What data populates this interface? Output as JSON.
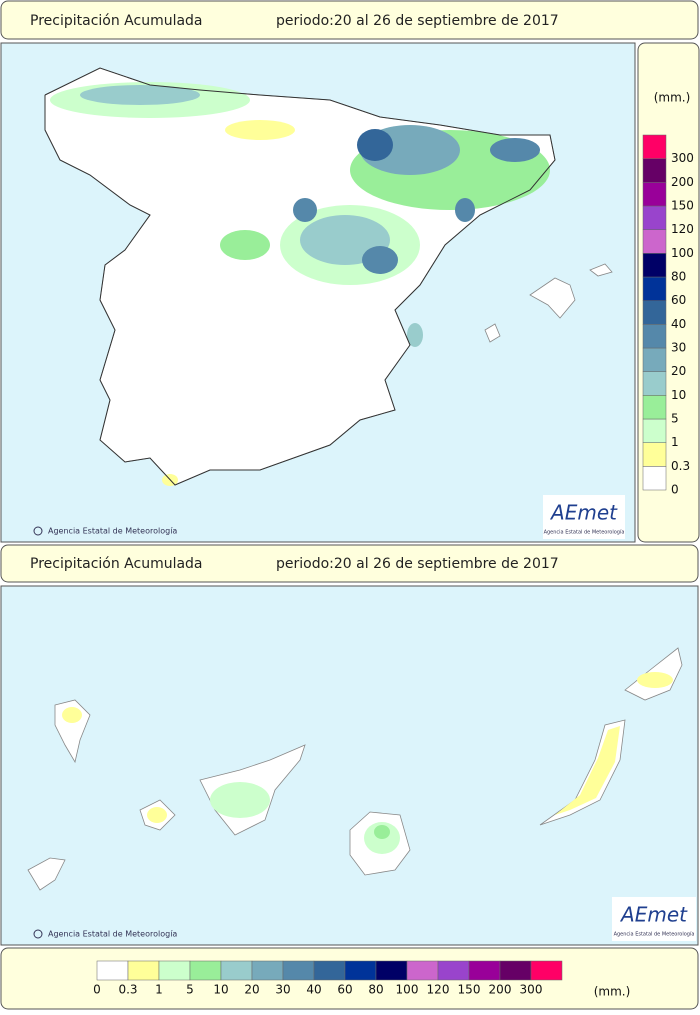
{
  "panels": [
    {
      "title": "Precipitación Acumulada",
      "period": "periodo:20 al 26 de septiembre de 2017"
    },
    {
      "title": "Precipitación Acumulada",
      "period": "periodo:20 al 26 de septiembre de 2017"
    }
  ],
  "credit": "Agencia Estatal de Meteorología",
  "logo": {
    "name": "AEmet",
    "subtitle": "Agencia Estatal de Meteorología"
  },
  "legend": {
    "unit": "(mm.)",
    "classes": [
      {
        "value": 0,
        "color": "#ffffff"
      },
      {
        "value": 0.3,
        "color": "#ffff99"
      },
      {
        "value": 1,
        "color": "#ccffcc"
      },
      {
        "value": 5,
        "color": "#99ee99"
      },
      {
        "value": 10,
        "color": "#99cccc"
      },
      {
        "value": 20,
        "color": "#77aabb"
      },
      {
        "value": 30,
        "color": "#5588aa"
      },
      {
        "value": 40,
        "color": "#336699"
      },
      {
        "value": 60,
        "color": "#003399"
      },
      {
        "value": 80,
        "color": "#000066"
      },
      {
        "value": 100,
        "color": "#cc66cc"
      },
      {
        "value": 120,
        "color": "#9944cc"
      },
      {
        "value": 150,
        "color": "#990099"
      },
      {
        "value": 200,
        "color": "#660066"
      },
      {
        "value": 300,
        "color": "#ff0066"
      }
    ]
  }
}
